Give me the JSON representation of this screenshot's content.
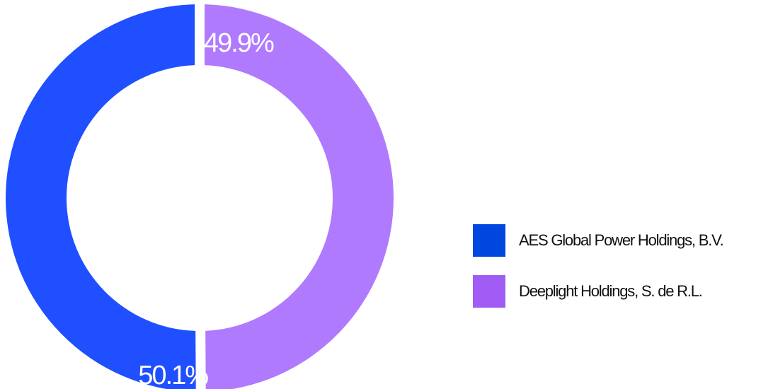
{
  "chart_data": {
    "type": "pie",
    "variant": "donut",
    "title": "",
    "slices": [
      {
        "label": "AES Global Power Holdings, B.V.",
        "value": 50.1,
        "display": "50.1%",
        "color": "#1f4fff",
        "legend_color": "#0047e0"
      },
      {
        "label": "Deeplight Holdings, S. de R.L.",
        "value": 49.9,
        "display": "49.9%",
        "color": "#b07aff",
        "legend_color": "#a15cf6"
      }
    ],
    "legend_position": "right"
  }
}
